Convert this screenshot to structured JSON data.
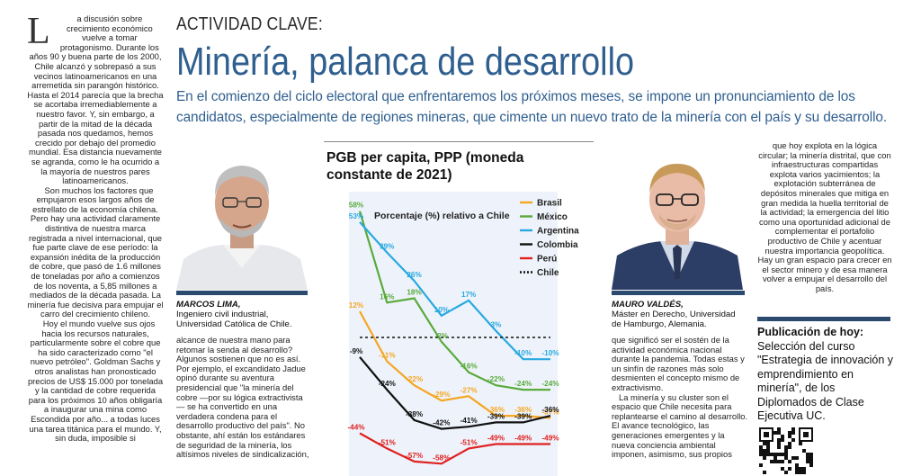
{
  "left_column": {
    "dropcap": "L",
    "paragraphs": [
      "a discusión sobre crecimiento económico vuelve a tomar protagonismo. Durante los años 90 y buena parte de los 2000, Chile alcanzó y sobrepasó a sus vecinos latinoamericanos en una arremetida sin parangón histórico. Hasta el 2014 parecía que la brecha se acortaba irremediablemente a nuestro favor. Y, sin embargo, a partir de la mitad de la década pasada nos quedamos, hemos crecido por debajo del promedio mundial. Esa distancia nuevamente se agranda, como le ha ocurrido a la mayoría de nuestros pares latinoamericanos.",
      "Son muchos los factores que empujaron esos largos años de estrellato de la economía chilena. Pero hay una actividad claramente distintiva de nuestra marca registrada a nivel internacional, que fue parte clave de ese período: la expansión inédita de la producción de cobre, que pasó de 1.6 millones de toneladas por año a comienzos de los noventa, a 5,85 millones a mediados de la década pasada. La minería fue decisiva para empujar el carro del crecimiento chileno.",
      "Hoy el mundo vuelve sus ojos hacia los recursos naturales, particularmente sobre el cobre que ha sido caracterizado como \"el nuevo petróleo\". Goldman Sachs y otros analistas han pronosticado precios de US$ 15.000 por tonelada y la cantidad de cobre requerida para los próximos 10 años obligaría a inaugurar una mina como Escondida por año... a todas luces una tarea titánica para el mundo. Y, sin duda, imposible si"
    ]
  },
  "header": {
    "kicker": "ACTIVIDAD CLAVE:",
    "headline": "Minería, palanca de desarrollo",
    "deck": "En el comienzo del ciclo electoral que enfrentaremos los próximos meses, se impone un pronunciamiento de los candidatos, especialmente de regiones mineras, que cimente un nuevo trato de la minería con el país y su desarrollo."
  },
  "authors": {
    "lima": {
      "name": "MARCOS LIMA,",
      "role": "Ingeniero civil industrial, Universidad Católica de Chile."
    },
    "valdes": {
      "name": "MAURO VALDÉS,",
      "role": "Máster en Derecho, Universidad de Hamburgo, Alemania."
    }
  },
  "mid_column": {
    "text": "alcance de nuestra mano para retomar la senda al desarrollo? Algunos sostienen que no es así. Por ejemplo, el excandidato Jadue opinó durante su aventura presidencial que \"la minería del cobre —por su lógica extractivista— se ha convertido en una verdadera condena para el desarrollo productivo del país\". No obstante, ahí están los estándares de seguridad de la minería, los altísimos niveles de sindicalización,"
  },
  "mid_column_2": {
    "paragraphs": [
      "que significó ser el sostén de la actividad económica nacional durante la pandemia. Todas estas y un sinfín de razones más solo desmienten el concepto mismo de extractivismo.",
      "La minería y su cluster son el espacio que Chile necesita para replantearse el camino al desarrollo. El avance tecnológico, las generaciones emergentes y la nueva conciencia ambiental imponen, asimismo, sus propios"
    ]
  },
  "right_column": {
    "text": "que hoy explota en la lógica circular; la minería distrital, que con infraestructuras compartidas explota varios yacimientos; la explotación subterránea de depósitos minerales que mitiga en gran medida la huella territorial de la actividad; la emergencia del litio como una oportunidad adicional de complementar el portafolio productivo de Chile y acentuar nuestra importancia geopolítica. Hay un gran espacio para crecer en el sector minero y de esa manera volver a empujar el desarrollo del país."
  },
  "publication": {
    "title": "Publicación de hoy:",
    "text": "Selección del curso \"Estrategia de innovación y emprendimiento en minería\", de los Diplomados de Clase Ejecutiva UC."
  },
  "chart_data": {
    "type": "line",
    "title": "PGB per capita, PPP (moneda constante de 2021)",
    "subtitle": "Porcentaje (%) relativo a Chile",
    "legend_position": "top-right",
    "x": [
      0,
      1,
      2,
      3,
      4,
      5,
      6,
      7
    ],
    "ylim": [
      -62,
      62
    ],
    "series": [
      {
        "name": "Brasil",
        "color": "#f5a623",
        "dash": false,
        "values": [
          12,
          -11,
          -22,
          -29,
          -27,
          -36,
          -36,
          -37
        ],
        "labels": [
          "12%",
          "-11%",
          "-22%",
          "-29%",
          "-27%",
          "-36%",
          "-36%",
          "-37%"
        ]
      },
      {
        "name": "México",
        "color": "#5aaa3c",
        "dash": false,
        "values": [
          58,
          16,
          18,
          -2,
          -16,
          -22,
          -24,
          -24
        ],
        "labels": [
          "58%",
          "16%",
          "18%",
          "-2%",
          "-16%",
          "-22%",
          "-24%",
          "-24%"
        ]
      },
      {
        "name": "Argentina",
        "color": "#29a9e0",
        "dash": false,
        "values": [
          53,
          39,
          26,
          10,
          17,
          3,
          -10,
          -10
        ],
        "labels": [
          "53%",
          "39%",
          "26%",
          "10%",
          "17%",
          "3%",
          "-10%",
          "-10%"
        ]
      },
      {
        "name": "Colombia",
        "color": "#111111",
        "dash": false,
        "values": [
          -9,
          -24,
          -38,
          -42,
          -41,
          -39,
          -39,
          -36
        ],
        "labels": [
          "-9%",
          "-24%",
          "-38%",
          "-42%",
          "-41%",
          "-39%",
          "-39%",
          "-36%"
        ]
      },
      {
        "name": "Perú",
        "color": "#e02020",
        "dash": false,
        "values": [
          -44,
          -51,
          -57,
          -58,
          -51,
          -49,
          -49,
          -49
        ],
        "labels": [
          "-44%",
          "-51%",
          "-57%",
          "-58%",
          "-51%",
          "-49%",
          "-49%",
          "-49%"
        ]
      },
      {
        "name": "Chile",
        "color": "#111111",
        "dash": true,
        "values": [
          0,
          0,
          0,
          0,
          0,
          0,
          0,
          0
        ],
        "labels": []
      }
    ]
  }
}
